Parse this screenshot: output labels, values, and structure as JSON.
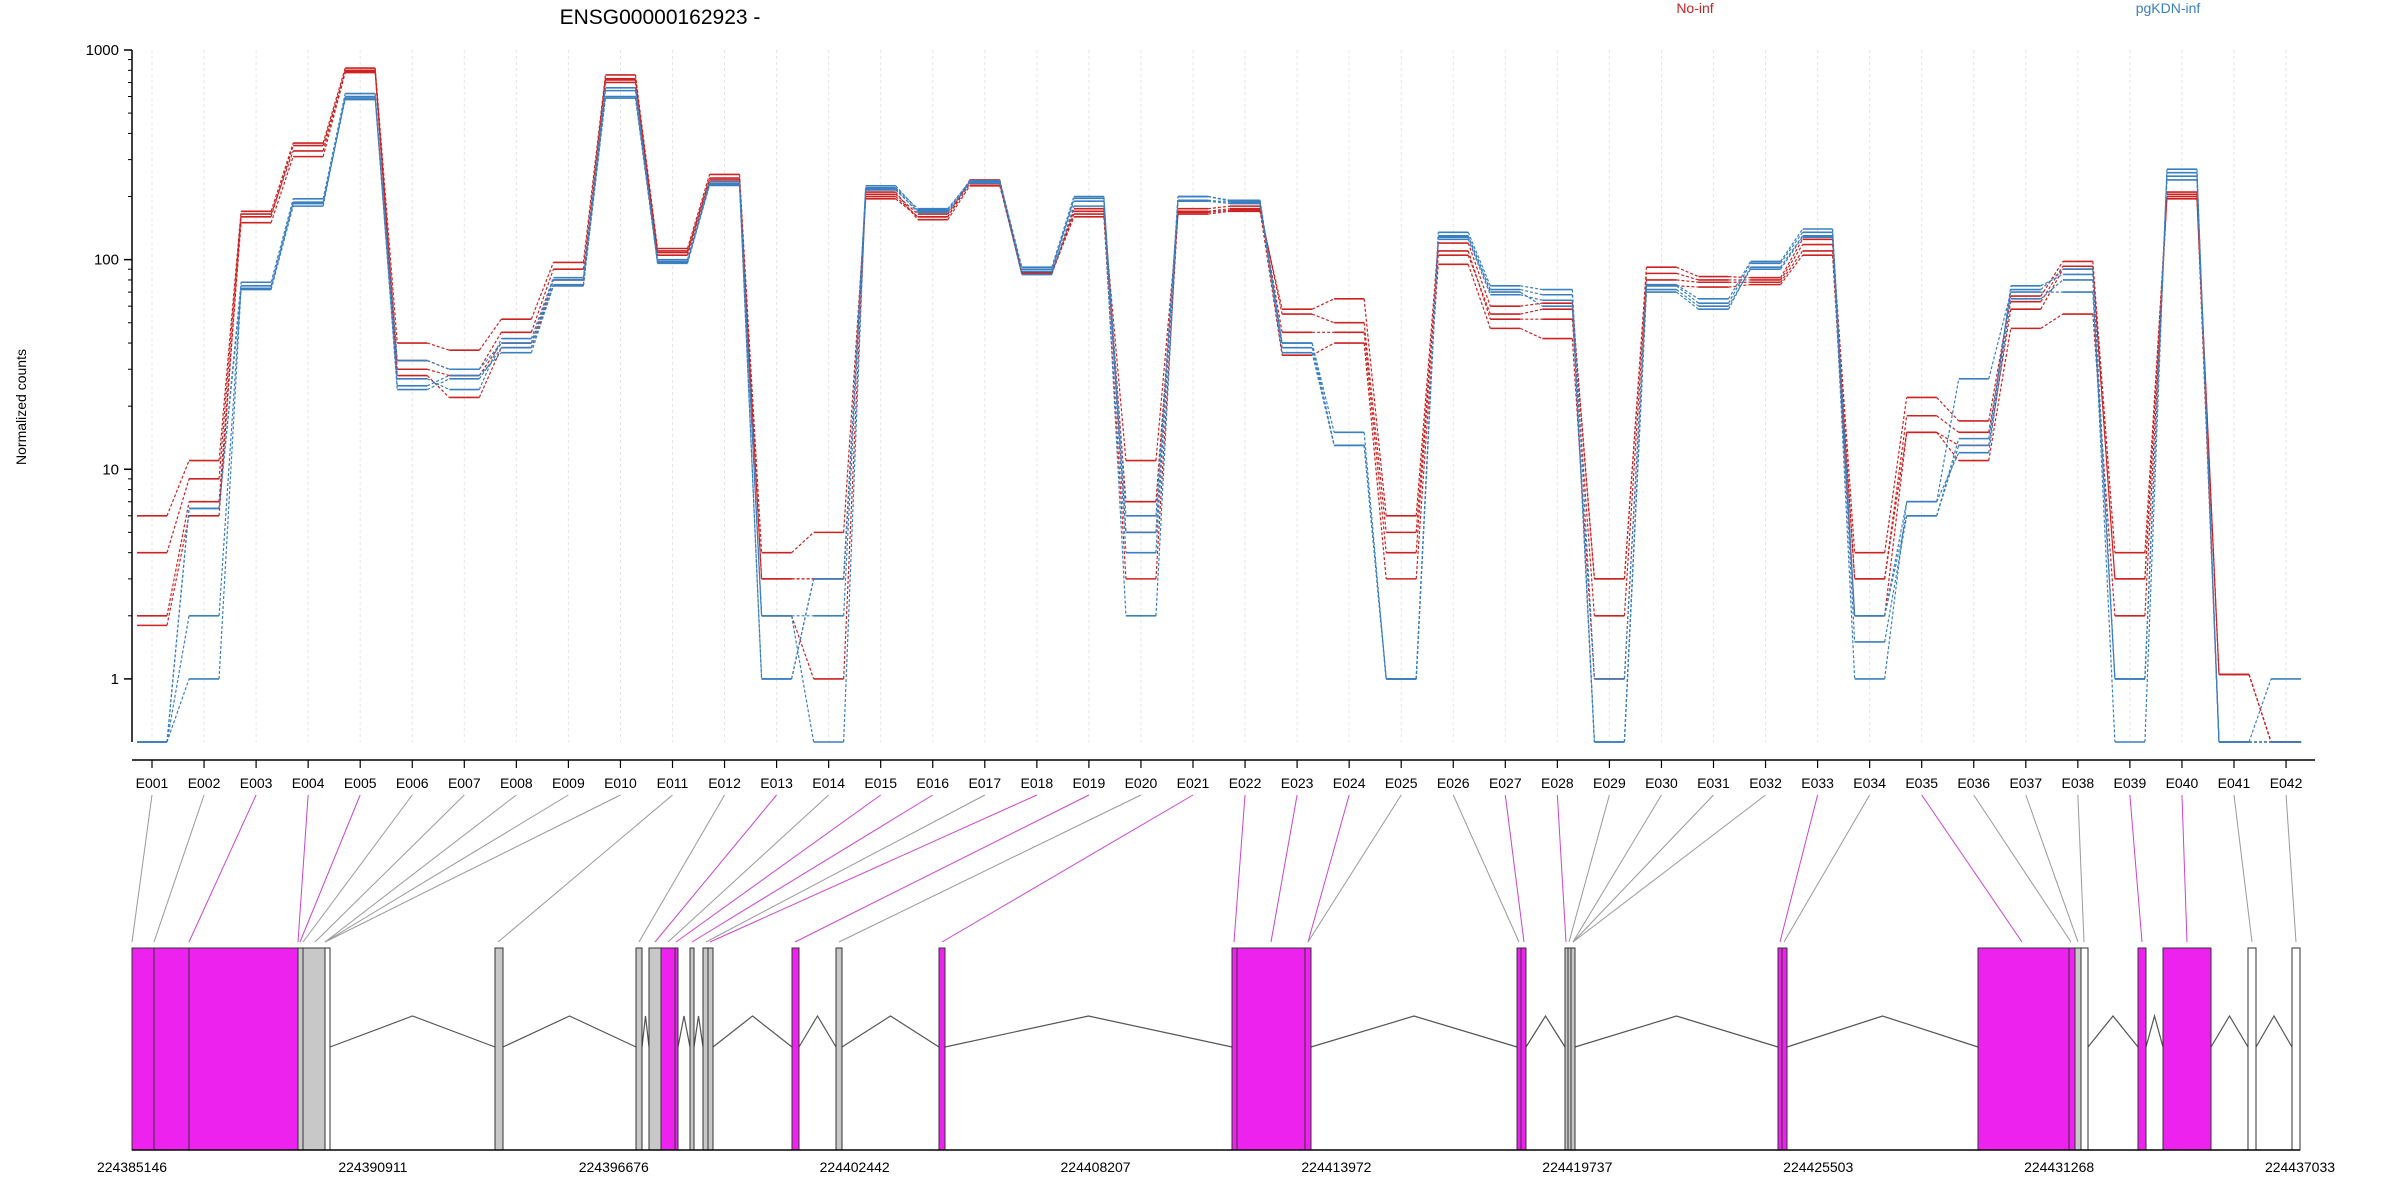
{
  "chart_data": {
    "type": "line",
    "title": "ENSG00000162923 -",
    "ylabel": "Normalized counts",
    "yscale": "log",
    "ylim": [
      0.5,
      1000
    ],
    "yticks": [
      1,
      10,
      100,
      1000
    ],
    "ytick_labels": [
      "1",
      "10",
      "100",
      "1000"
    ],
    "grid": "vertical",
    "legend": [
      {
        "name": "No-inf",
        "color": "#cc2222",
        "position": "top-center"
      },
      {
        "name": "pgKDN-inf",
        "color": "#3a7fbf",
        "position": "top-right"
      }
    ],
    "categories": [
      "E001",
      "E002",
      "E003",
      "E004",
      "E005",
      "E006",
      "E007",
      "E008",
      "E009",
      "E010",
      "E011",
      "E012",
      "E013",
      "E014",
      "E015",
      "E016",
      "E017",
      "E018",
      "E019",
      "E020",
      "E021",
      "E022",
      "E023",
      "E024",
      "E025",
      "E026",
      "E027",
      "E028",
      "E029",
      "E030",
      "E031",
      "E032",
      "E033",
      "E034",
      "E035",
      "E036",
      "E037",
      "E038",
      "E039",
      "E040",
      "E041",
      "E042"
    ],
    "series": [
      {
        "group": "No-inf",
        "values": [
          6,
          11,
          170,
          360,
          820,
          40,
          37,
          52,
          97,
          760,
          113,
          255,
          4,
          5,
          195,
          160,
          240,
          87,
          165,
          11,
          165,
          170,
          58,
          65,
          6,
          120,
          60,
          62,
          3,
          92,
          83,
          82,
          125,
          4,
          22,
          17,
          67,
          98,
          4,
          195,
          1.05,
          0.5
        ]
      },
      {
        "group": "No-inf",
        "values": [
          4,
          9,
          165,
          330,
          800,
          33,
          30,
          45,
          90,
          730,
          110,
          245,
          3,
          3,
          205,
          165,
          235,
          86,
          170,
          7,
          170,
          175,
          55,
          50,
          5,
          105,
          55,
          58,
          3,
          86,
          80,
          80,
          118,
          3,
          18,
          15,
          63,
          93,
          3,
          205,
          1.05,
          0.5
        ]
      },
      {
        "group": "No-inf",
        "values": [
          2,
          7,
          150,
          310,
          780,
          30,
          28,
          40,
          80,
          700,
          108,
          240,
          3,
          3,
          200,
          160,
          230,
          85,
          175,
          5,
          175,
          180,
          45,
          45,
          4,
          110,
          52,
          52,
          2,
          80,
          78,
          78,
          110,
          3,
          15,
          13,
          58,
          90,
          3,
          210,
          1.05,
          0.5
        ]
      },
      {
        "group": "No-inf",
        "values": [
          1.8,
          6,
          160,
          350,
          790,
          28,
          22,
          38,
          75,
          720,
          105,
          235,
          2,
          1,
          210,
          155,
          225,
          86,
          160,
          3,
          168,
          172,
          35,
          40,
          3,
          95,
          47,
          42,
          1,
          75,
          74,
          76,
          105,
          2,
          15,
          11,
          47,
          55,
          2,
          200,
          0.5,
          0.5
        ]
      },
      {
        "group": "pgKDN-inf",
        "values": [
          0.5,
          6.5,
          72,
          180,
          600,
          24,
          27,
          38,
          80,
          660,
          98,
          230,
          1,
          3,
          220,
          175,
          235,
          90,
          190,
          6,
          190,
          185,
          40,
          15,
          1,
          135,
          75,
          72,
          1,
          76,
          65,
          98,
          140,
          2,
          7,
          27,
          70,
          70,
          1,
          260,
          0.5,
          1
        ]
      },
      {
        "group": "pgKDN-inf",
        "values": [
          0.5,
          6.5,
          78,
          195,
          620,
          27,
          24,
          42,
          82,
          640,
          97,
          226,
          1,
          3,
          215,
          170,
          232,
          88,
          196,
          5,
          200,
          190,
          38,
          13,
          1,
          130,
          72,
          68,
          0.5,
          75,
          62,
          96,
          135,
          2,
          6,
          14,
          72,
          90,
          1,
          250,
          0.5,
          0.5
        ]
      },
      {
        "group": "pgKDN-inf",
        "values": [
          0.5,
          2,
          75,
          188,
          580,
          33,
          30,
          40,
          76,
          600,
          100,
          235,
          2,
          2,
          225,
          172,
          238,
          92,
          200,
          4,
          200,
          192,
          40,
          13,
          1,
          128,
          70,
          60,
          0.5,
          72,
          60,
          90,
          128,
          1.5,
          6,
          13,
          75,
          85,
          1,
          240,
          0.5,
          0.5
        ]
      },
      {
        "group": "pgKDN-inf",
        "values": [
          0.5,
          1,
          73,
          185,
          590,
          25,
          28,
          36,
          75,
          590,
          96,
          228,
          2,
          0.5,
          218,
          168,
          233,
          85,
          180,
          2,
          192,
          188,
          36,
          13,
          1,
          125,
          68,
          64,
          0.5,
          70,
          58,
          92,
          130,
          1,
          7,
          12,
          65,
          80,
          0.5,
          270,
          0.5,
          0.5
        ]
      }
    ]
  },
  "gene_model": {
    "coordinate_labels": [
      "224385146",
      "224390911",
      "224396676",
      "224402442",
      "224408207",
      "224413972",
      "224419737",
      "224425503",
      "224431268",
      "224437033"
    ]
  }
}
